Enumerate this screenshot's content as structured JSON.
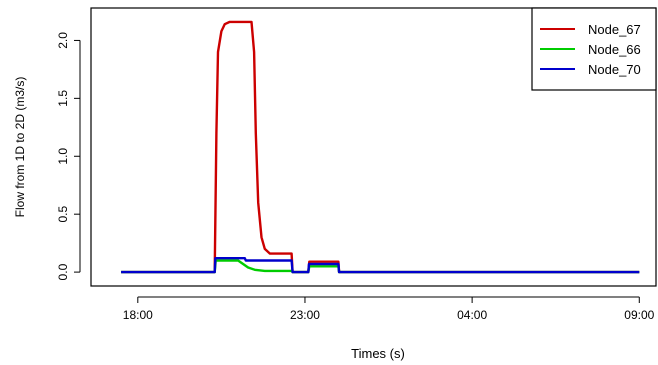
{
  "chart_data": {
    "type": "line",
    "title": "",
    "xlabel": "Times (s)",
    "ylabel": "Flow from 1D to 2D (m3/s)",
    "x_ticks": [
      {
        "label": "18:00",
        "hours": 18
      },
      {
        "label": "23:00",
        "hours": 23
      },
      {
        "label": "04:00",
        "hours": 28
      },
      {
        "label": "09:00",
        "hours": 33
      }
    ],
    "y_ticks": [
      "0.0",
      "0.5",
      "1.0",
      "1.5",
      "2.0"
    ],
    "xlim_hours": [
      16.6,
      33.5
    ],
    "ylim": [
      -0.12,
      2.28
    ],
    "grid": false,
    "legend_position": "top-right",
    "series": [
      {
        "name": "Node_67",
        "color": "#cc0000",
        "points": [
          [
            17.5,
            0
          ],
          [
            20.3,
            0
          ],
          [
            20.35,
            1.2
          ],
          [
            20.4,
            1.9
          ],
          [
            20.5,
            2.08
          ],
          [
            20.6,
            2.14
          ],
          [
            20.75,
            2.16
          ],
          [
            21.4,
            2.16
          ],
          [
            21.48,
            1.9
          ],
          [
            21.53,
            1.2
          ],
          [
            21.6,
            0.6
          ],
          [
            21.7,
            0.3
          ],
          [
            21.8,
            0.2
          ],
          [
            21.95,
            0.16
          ],
          [
            22.6,
            0.16
          ],
          [
            22.63,
            0
          ],
          [
            23.1,
            0
          ],
          [
            23.13,
            0.09
          ],
          [
            24.0,
            0.09
          ],
          [
            24.02,
            0
          ],
          [
            33.0,
            0
          ]
        ]
      },
      {
        "name": "Node_66",
        "color": "#00cc00",
        "points": [
          [
            17.5,
            0
          ],
          [
            20.3,
            0
          ],
          [
            20.33,
            0.1
          ],
          [
            21.0,
            0.1
          ],
          [
            21.15,
            0.07
          ],
          [
            21.3,
            0.04
          ],
          [
            21.5,
            0.02
          ],
          [
            21.8,
            0.01
          ],
          [
            22.6,
            0.01
          ],
          [
            22.63,
            0
          ],
          [
            23.1,
            0
          ],
          [
            23.13,
            0.05
          ],
          [
            24.0,
            0.05
          ],
          [
            24.02,
            0
          ],
          [
            33.0,
            0
          ]
        ]
      },
      {
        "name": "Node_70",
        "color": "#0000cc",
        "points": [
          [
            17.5,
            0
          ],
          [
            20.3,
            0
          ],
          [
            20.32,
            0.12
          ],
          [
            21.2,
            0.12
          ],
          [
            21.23,
            0.1
          ],
          [
            22.6,
            0.1
          ],
          [
            22.63,
            0
          ],
          [
            23.1,
            0
          ],
          [
            23.12,
            0.07
          ],
          [
            24.0,
            0.07
          ],
          [
            24.02,
            0
          ],
          [
            33.0,
            0
          ]
        ]
      }
    ]
  }
}
